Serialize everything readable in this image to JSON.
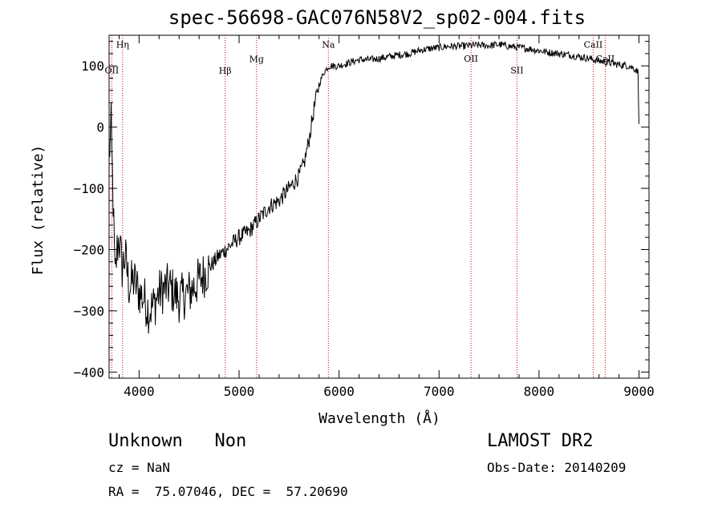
{
  "chart_data": {
    "type": "line",
    "title": "spec-56698-GAC076N58V2_sp02-004.fits",
    "xlabel": "Wavelength (Å)",
    "ylabel": "Flux (relative)",
    "xlim": [
      3700,
      9100
    ],
    "ylim": [
      -410,
      150
    ],
    "xticks": [
      4000,
      5000,
      6000,
      7000,
      8000,
      9000
    ],
    "xtick_labels": [
      "4000",
      "5000",
      "6000",
      "7000",
      "8000",
      "9000"
    ],
    "yticks": [
      -400,
      -300,
      -200,
      -100,
      0,
      100
    ],
    "ytick_labels": [
      "−400",
      "−300",
      "−200",
      "−100",
      "0",
      "100"
    ],
    "grid": false,
    "series": [
      {
        "x": [
          3700,
          3720,
          3740,
          3760,
          3780,
          3800,
          3830,
          3860,
          3900,
          3950,
          4000,
          4050,
          4100,
          4150,
          4200,
          4300,
          4400,
          4500,
          4600,
          4700,
          4800,
          4900,
          5000,
          5100,
          5200,
          5300,
          5400,
          5500,
          5600,
          5650,
          5700,
          5750,
          5800,
          5850,
          5900,
          6000,
          6100,
          6200,
          6300,
          6400,
          6500,
          6600,
          6700,
          6800,
          6900,
          7000,
          7100,
          7200,
          7300,
          7400,
          7500,
          7600,
          7700,
          7800,
          7900,
          8000,
          8100,
          8200,
          8300,
          8400,
          8500,
          8600,
          8700,
          8800,
          8900,
          8960,
          8990,
          9000
        ],
        "y": [
          -50,
          0,
          -120,
          -250,
          -200,
          -180,
          -230,
          -210,
          -260,
          -250,
          -270,
          -280,
          -300,
          -290,
          -270,
          -260,
          -280,
          -270,
          -250,
          -230,
          -210,
          -195,
          -180,
          -170,
          -150,
          -130,
          -120,
          -100,
          -80,
          -60,
          -20,
          30,
          70,
          90,
          100,
          100,
          105,
          110,
          110,
          112,
          115,
          118,
          120,
          125,
          128,
          130,
          132,
          132,
          133,
          134,
          133,
          135,
          132,
          130,
          128,
          125,
          122,
          120,
          118,
          115,
          112,
          108,
          105,
          102,
          100,
          95,
          90,
          5
        ]
      }
    ],
    "lines": [
      {
        "label": "Hη",
        "x": 3835,
        "label_y": 130
      },
      {
        "label": "OII",
        "x": 3727,
        "label_y": 88
      },
      {
        "label": "Hβ",
        "x": 4861,
        "label_y": 87
      },
      {
        "label": "Mg",
        "x": 5175,
        "label_y": 106
      },
      {
        "label": "Na",
        "x": 5893,
        "label_y": 130
      },
      {
        "label": "OII",
        "x": 7320,
        "label_y": 107
      },
      {
        "label": "SII",
        "x": 7780,
        "label_y": 88
      },
      {
        "label": "CaII",
        "x": 8542,
        "label_y": 130
      },
      {
        "label": "CaII",
        "x": 8662,
        "label_y": 107
      }
    ]
  },
  "footer": {
    "object": "Unknown   Non",
    "survey": "LAMOST DR2",
    "cz": "cz = NaN",
    "obs_date": "Obs-Date: 20140209",
    "coords": "RA =  75.07046, DEC =  57.20690"
  }
}
